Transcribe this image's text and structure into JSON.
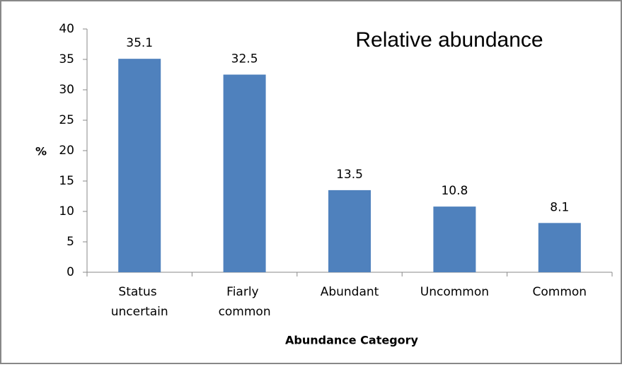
{
  "chart_data": {
    "type": "bar",
    "title": "Relative abundance",
    "x_label": "Abundance Category",
    "y_label": "%",
    "categories": [
      "Status uncertain",
      "Fiarly common",
      "Abundant",
      "Uncommon",
      "Common"
    ],
    "values": [
      35.1,
      32.5,
      13.5,
      10.8,
      8.1
    ],
    "color": "#4f81bd",
    "ylim": [
      0,
      40
    ],
    "yticks": [
      0,
      5,
      10,
      15,
      20,
      25,
      30,
      35,
      40
    ],
    "grid": false
  }
}
